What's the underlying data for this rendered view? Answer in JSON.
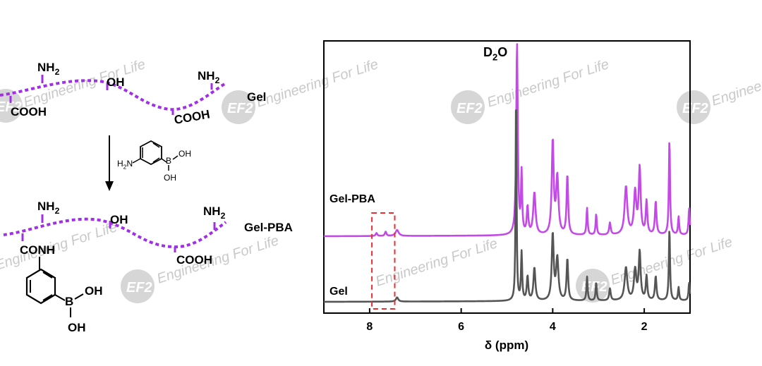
{
  "scheme": {
    "gel": {
      "label": "Gel",
      "amine1": "NH2",
      "hydroxyl": "OH",
      "amine2": "NH2",
      "carboxyl1": "COOH",
      "carboxyl2": "COOH"
    },
    "reagent": {
      "amine": "H2N",
      "boron": "B",
      "oh1": "OH",
      "oh2": "OH"
    },
    "gel_pba": {
      "label": "Gel-PBA",
      "amine1": "NH2",
      "hydroxyl": "OH",
      "amine2": "NH2",
      "amide": "CONH",
      "carboxyl": "COOH",
      "boron": "B",
      "oh1": "OH",
      "oh2": "OH"
    }
  },
  "watermark": {
    "logo": "EF2",
    "text": "Engineering For Life"
  },
  "colors": {
    "gel_chain": "#a02fe6",
    "spectrum_gel": "#555555",
    "spectrum_gelpba": "#c44ae8",
    "highlight_box": "#e53030"
  },
  "chart_data": {
    "type": "line",
    "title": "",
    "xlabel": "δ (ppm)",
    "ylabel": "",
    "xlim": [
      9.0,
      1.0
    ],
    "x_reversed": true,
    "xticks": [
      8,
      6,
      4,
      2
    ],
    "xtick_labels": [
      "8",
      "6",
      "4",
      "2"
    ],
    "annotation": "D2O",
    "highlight_region_ppm": [
      7.45,
      7.95
    ],
    "series": [
      {
        "name": "Gel-PBA",
        "baseline": 1.0,
        "peaks": [
          {
            "ppm": 7.85,
            "height": 0.05,
            "width": 0.02
          },
          {
            "ppm": 7.65,
            "height": 0.07,
            "width": 0.02
          },
          {
            "ppm": 7.4,
            "height": 0.1,
            "width": 0.04
          },
          {
            "ppm": 4.78,
            "height": 3.2,
            "width": 0.02
          },
          {
            "ppm": 4.68,
            "height": 1.0,
            "width": 0.015
          },
          {
            "ppm": 4.55,
            "height": 0.45,
            "width": 0.02
          },
          {
            "ppm": 4.4,
            "height": 0.7,
            "width": 0.03
          },
          {
            "ppm": 4.0,
            "height": 1.55,
            "width": 0.025
          },
          {
            "ppm": 3.9,
            "height": 0.95,
            "width": 0.03
          },
          {
            "ppm": 3.68,
            "height": 1.0,
            "width": 0.02
          },
          {
            "ppm": 3.25,
            "height": 0.45,
            "width": 0.015
          },
          {
            "ppm": 3.05,
            "height": 0.35,
            "width": 0.015
          },
          {
            "ppm": 2.75,
            "height": 0.2,
            "width": 0.02
          },
          {
            "ppm": 2.4,
            "height": 0.8,
            "width": 0.035
          },
          {
            "ppm": 2.2,
            "height": 0.7,
            "width": 0.03
          },
          {
            "ppm": 2.1,
            "height": 1.1,
            "width": 0.025
          },
          {
            "ppm": 1.95,
            "height": 0.55,
            "width": 0.02
          },
          {
            "ppm": 1.75,
            "height": 0.55,
            "width": 0.02
          },
          {
            "ppm": 1.45,
            "height": 1.6,
            "width": 0.015
          },
          {
            "ppm": 1.25,
            "height": 0.3,
            "width": 0.015
          },
          {
            "ppm": 1.02,
            "height": 0.45,
            "width": 0.015
          }
        ]
      },
      {
        "name": "Gel",
        "baseline": 0.0,
        "peaks": [
          {
            "ppm": 7.4,
            "height": 0.07,
            "width": 0.03
          },
          {
            "ppm": 4.8,
            "height": 3.6,
            "width": 0.012
          },
          {
            "ppm": 4.68,
            "height": 0.8,
            "width": 0.015
          },
          {
            "ppm": 4.55,
            "height": 0.4,
            "width": 0.02
          },
          {
            "ppm": 4.4,
            "height": 0.55,
            "width": 0.025
          },
          {
            "ppm": 4.0,
            "height": 1.1,
            "width": 0.025
          },
          {
            "ppm": 3.9,
            "height": 0.7,
            "width": 0.03
          },
          {
            "ppm": 3.68,
            "height": 0.7,
            "width": 0.02
          },
          {
            "ppm": 3.25,
            "height": 0.4,
            "width": 0.015
          },
          {
            "ppm": 3.05,
            "height": 0.3,
            "width": 0.015
          },
          {
            "ppm": 2.75,
            "height": 0.2,
            "width": 0.02
          },
          {
            "ppm": 2.4,
            "height": 0.55,
            "width": 0.035
          },
          {
            "ppm": 2.2,
            "height": 0.5,
            "width": 0.03
          },
          {
            "ppm": 2.1,
            "height": 0.8,
            "width": 0.025
          },
          {
            "ppm": 1.95,
            "height": 0.4,
            "width": 0.02
          },
          {
            "ppm": 1.75,
            "height": 0.4,
            "width": 0.02
          },
          {
            "ppm": 1.45,
            "height": 1.2,
            "width": 0.015
          },
          {
            "ppm": 1.25,
            "height": 0.22,
            "width": 0.015
          },
          {
            "ppm": 1.02,
            "height": 0.3,
            "width": 0.015
          }
        ]
      }
    ]
  }
}
